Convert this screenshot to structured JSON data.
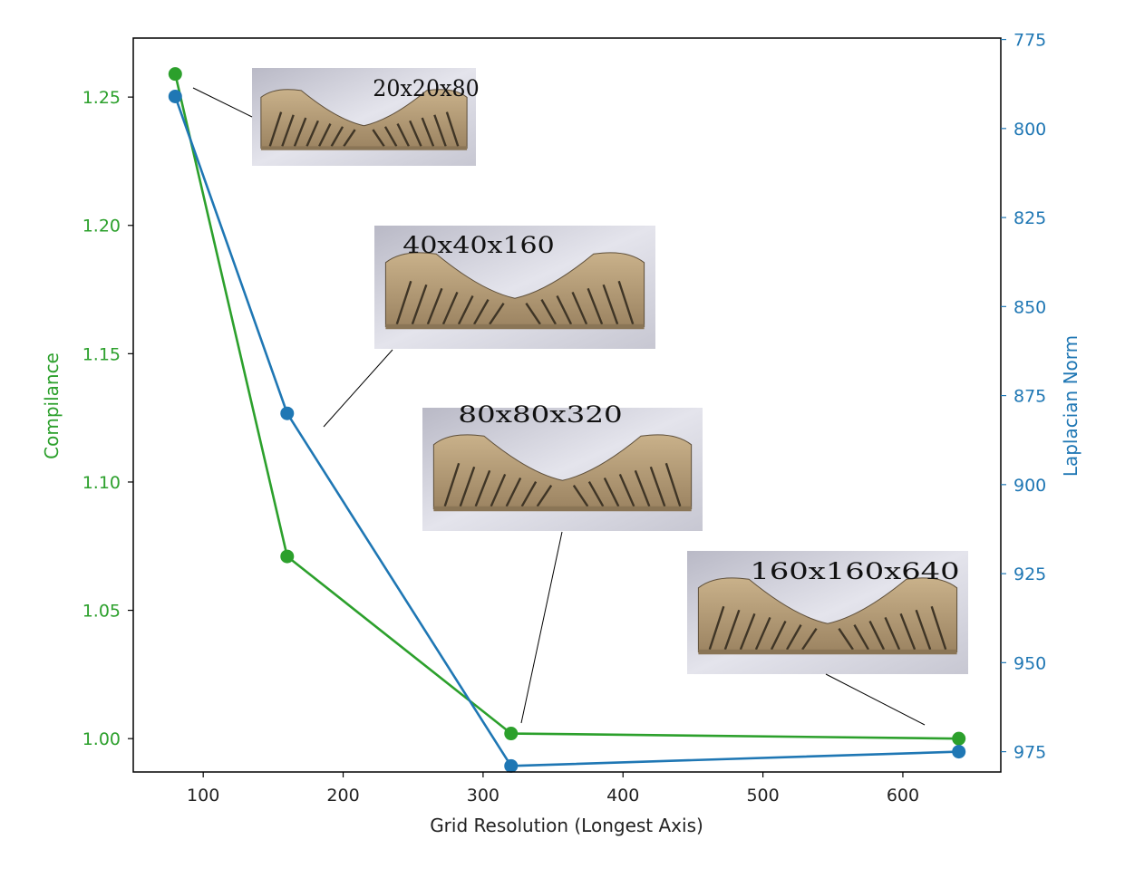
{
  "chart_data": {
    "type": "line",
    "xlabel": "Grid Resolution (Longest Axis)",
    "ylabel_left": "Compilance",
    "ylabel_right": "Laplacian Norm",
    "x_ticks": [
      100,
      200,
      300,
      400,
      500,
      600
    ],
    "y_left_ticks": [
      1.0,
      1.05,
      1.1,
      1.15,
      1.2,
      1.25
    ],
    "y_right_ticks": [
      775,
      800,
      825,
      850,
      875,
      900,
      925,
      950,
      975
    ],
    "xlim": [
      50,
      670
    ],
    "ylim_left": [
      0.987,
      1.273
    ],
    "ylim_right": [
      980.7,
      774.6
    ],
    "right_axis_inverted": true,
    "grid": false,
    "series": [
      {
        "axis": "left",
        "color": "#2ca02c",
        "x": [
          80,
          160,
          320,
          640
        ],
        "values": [
          1.259,
          1.071,
          1.002,
          1.0
        ]
      },
      {
        "axis": "right",
        "color": "#1f77b4",
        "x": [
          80,
          160,
          320,
          640
        ],
        "values": [
          791,
          880,
          979,
          975
        ]
      }
    ],
    "insets": [
      {
        "label": "20x20x80",
        "points_to_x": 80
      },
      {
        "label": "40x40x160",
        "points_to_x": 160
      },
      {
        "label": "80x80x320",
        "points_to_x": 320
      },
      {
        "label": "160x160x640",
        "points_to_x": 640
      }
    ]
  },
  "colors": {
    "left_axis": "#2ca02c",
    "right_axis": "#1f77b4",
    "frame": "#000000"
  }
}
